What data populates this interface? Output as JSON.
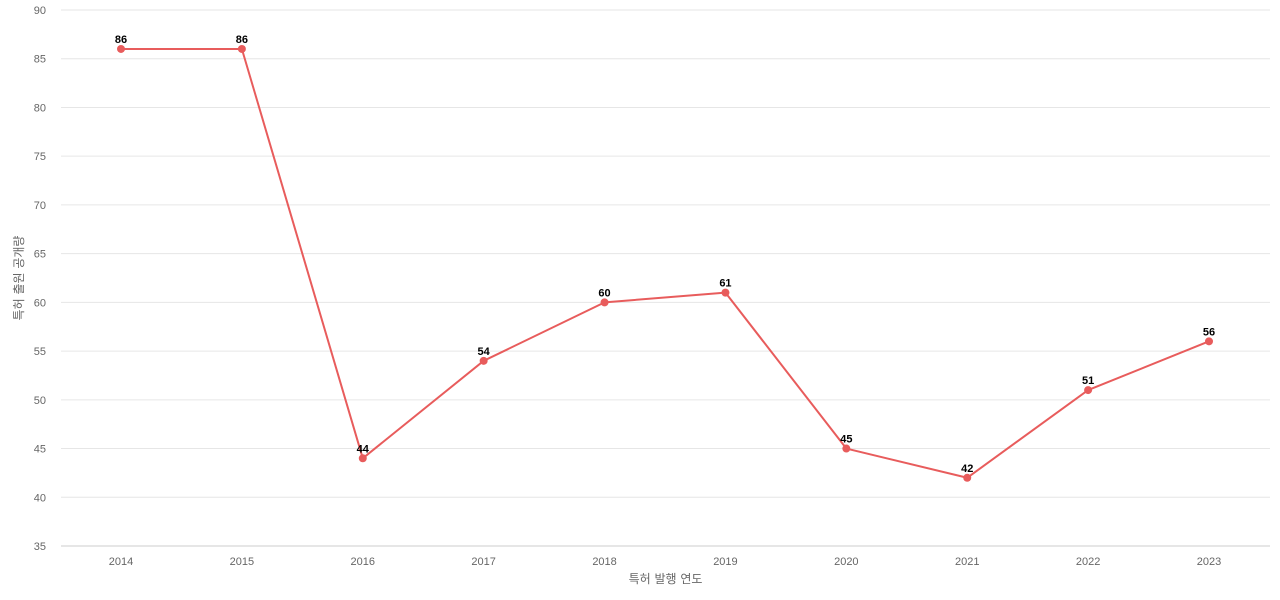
{
  "chart_data": {
    "type": "line",
    "title": "",
    "xlabel": "특허 발행 연도",
    "ylabel": "특허 출원 공개량",
    "ylim": [
      35,
      90
    ],
    "yticks": [
      35,
      40,
      45,
      50,
      55,
      60,
      65,
      70,
      75,
      80,
      85,
      90
    ],
    "grid": true,
    "legend": "none",
    "categories": [
      "2014",
      "2015",
      "2016",
      "2017",
      "2018",
      "2019",
      "2020",
      "2021",
      "2022",
      "2023"
    ],
    "series": [
      {
        "values": [
          86,
          86,
          44,
          54,
          60,
          61,
          45,
          42,
          51,
          56
        ],
        "color": "#e85c5c"
      }
    ]
  }
}
